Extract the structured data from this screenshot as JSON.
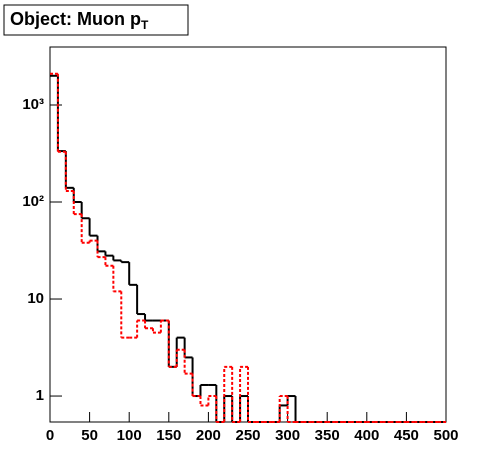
{
  "chart_data": {
    "type": "histogram",
    "title": {
      "text": "Object: Muon p",
      "subscript": "T"
    },
    "bins": [
      0,
      10,
      20,
      30,
      40,
      50,
      60,
      70,
      80,
      90,
      100,
      110,
      120,
      130,
      140,
      150,
      160,
      170,
      180,
      190,
      200,
      210,
      220,
      230,
      240,
      250,
      260,
      270,
      280,
      290,
      300,
      310,
      320,
      330,
      340,
      350,
      360,
      370,
      380,
      390,
      400,
      410,
      420,
      430,
      440,
      450,
      460,
      470,
      480,
      490,
      500
    ],
    "series": [
      {
        "color": "#000000",
        "style": "solid",
        "values": [
          2000,
          335,
          140,
          100,
          68,
          45,
          31,
          28,
          25,
          24,
          14,
          7,
          6,
          6,
          6,
          2,
          4,
          2.5,
          1,
          1.3,
          1.3,
          0,
          1,
          0,
          1,
          0,
          0,
          0,
          0,
          0.8,
          1,
          0,
          0,
          0,
          0,
          0,
          0,
          0,
          0,
          0,
          0,
          0,
          0,
          0,
          0,
          0,
          0,
          0,
          0,
          0
        ]
      },
      {
        "color": "#ff0000",
        "style": "dashed",
        "values": [
          2100,
          330,
          130,
          75,
          38,
          40,
          27,
          22,
          12,
          4,
          4,
          6,
          5,
          4.5,
          6,
          2,
          3,
          1.7,
          1,
          0.8,
          1,
          0,
          2,
          0,
          2,
          0,
          0,
          0,
          0,
          1,
          0,
          0,
          0,
          0,
          0,
          0,
          0,
          0,
          0,
          0,
          0,
          0,
          0,
          0,
          0,
          0,
          0,
          0,
          0,
          0
        ]
      }
    ],
    "xlim": [
      0,
      500
    ],
    "xticks": [
      0,
      50,
      100,
      150,
      200,
      250,
      300,
      350,
      400,
      450,
      500
    ],
    "ylim": [
      0.54,
      3960
    ],
    "log_y": true,
    "yticks": [
      1,
      10,
      {
        "value": 100,
        "label": "10²"
      },
      {
        "value": 1000,
        "label": "10³"
      }
    ]
  }
}
